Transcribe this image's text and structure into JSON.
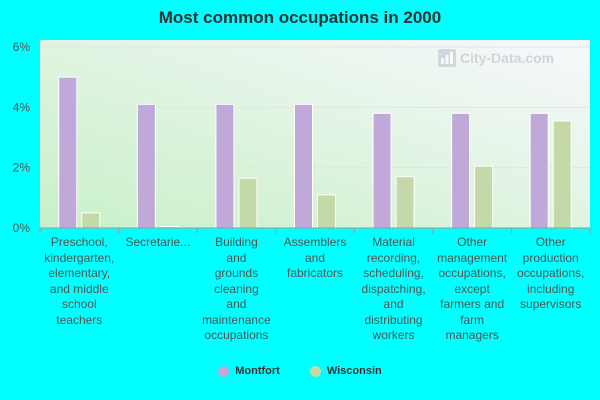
{
  "chart_data": {
    "type": "bar",
    "title": "Most common occupations in 2000",
    "categories": [
      "Preschool, kindergarten, elementary, and middle school teachers",
      "Secretarie...",
      "Building and grounds cleaning and maintenance occupations",
      "Assemblers and fabricators",
      "Material recording, scheduling, dispatching, and distributing workers",
      "Other management occupations, except farmers and farm managers",
      "Other production occupations, including supervisors"
    ],
    "category_display": [
      "Preschool,\nkindergarten,\nelementary,\nand middle\nschool\nteachers",
      "Secretarie...",
      "Building\nand\ngrounds\ncleaning\nand\nmaintenance\noccupations",
      "Assemblers\nand\nfabricators",
      "Material\nrecording,\nscheduling,\ndispatching,\nand\ndistributing\nworkers",
      "Other\nmanagement\noccupations,\nexcept\nfarmers and\nfarm\nmanagers",
      "Other\nproduction\noccupations,\nincluding\nsupervisors"
    ],
    "series": [
      {
        "name": "Montfort",
        "color": "#c0a8d8",
        "values": [
          5.0,
          4.1,
          4.1,
          4.1,
          3.8,
          3.8,
          3.8
        ]
      },
      {
        "name": "Wisconsin",
        "color": "#c4d8a8",
        "values": [
          0.5,
          0.05,
          1.65,
          1.1,
          1.7,
          2.05,
          3.55
        ]
      }
    ],
    "ylim": [
      0,
      6
    ],
    "yticks": [
      0,
      2,
      4,
      6
    ],
    "ytick_labels": [
      "0%",
      "2%",
      "4%",
      "6%"
    ],
    "grid": true,
    "legend": "bottom-center"
  },
  "colors": {
    "page_background": "#00ffff",
    "plot_gradient_top": "#f8f8fc",
    "plot_gradient_bottom": "#c8f0c8"
  },
  "watermark": "City-Data.com"
}
